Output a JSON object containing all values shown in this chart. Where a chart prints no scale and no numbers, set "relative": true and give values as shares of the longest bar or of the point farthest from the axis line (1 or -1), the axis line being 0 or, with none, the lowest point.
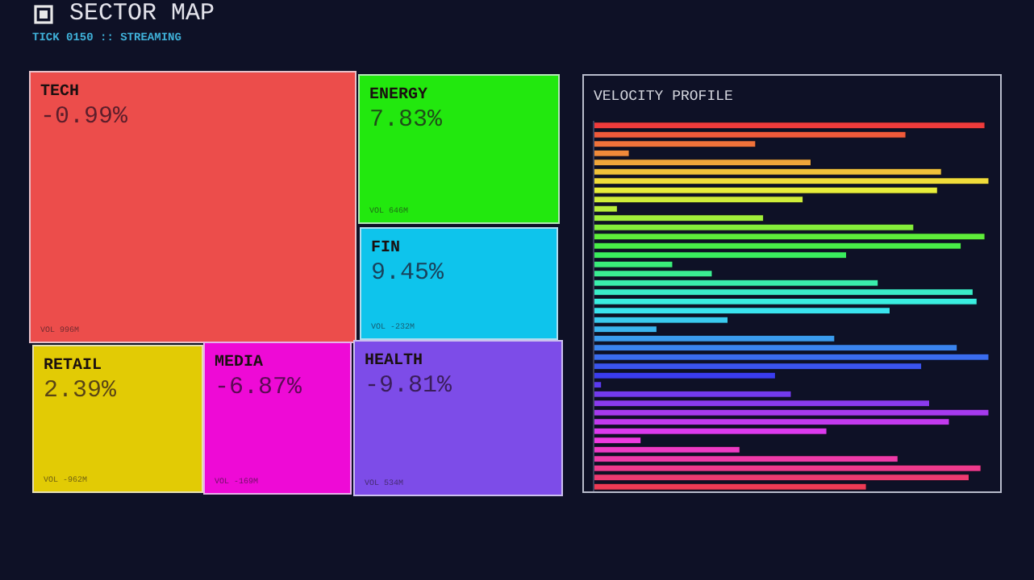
{
  "chart_data": [
    {
      "type": "other",
      "title": "SECTOR MAP",
      "subtitle": "TICK 0150 :: STREAMING",
      "categories": [
        "TECH",
        "ENERGY",
        "FIN",
        "RETAIL",
        "MEDIA",
        "HEALTH"
      ],
      "value_labels": [
        "-0.99%",
        "7.83%",
        "9.45%",
        "2.39%",
        "-6.87%",
        "-9.81%"
      ],
      "colors": [
        "#ec4d4b",
        "#22e80e",
        "#0ec4ec",
        "#e2cb05",
        "#ee0ad6",
        "#7d4ce8"
      ],
      "annotations": [
        {
          "text": "VOL 996M",
          "x": "TECH"
        },
        {
          "text": "VOL 646M",
          "x": "ENERGY"
        },
        {
          "text": "VOL -232M",
          "x": "FIN"
        },
        {
          "text": "VOL -962M",
          "x": "RETAIL"
        },
        {
          "text": "VOL -169M",
          "x": "MEDIA"
        },
        {
          "text": "VOL 534M",
          "x": "HEALTH"
        }
      ]
    },
    {
      "type": "bar",
      "title": "VELOCITY PROFILE",
      "orientation": "horizontal",
      "relative": true,
      "categories": [
        null,
        null,
        null,
        null,
        null,
        null,
        null,
        null,
        null,
        null,
        null,
        null,
        null,
        null,
        null,
        null,
        null,
        null,
        null,
        null,
        null,
        null,
        null,
        null,
        null,
        null,
        null,
        null,
        null,
        null,
        null,
        null,
        null,
        null,
        null,
        null,
        null,
        null,
        null,
        null
      ],
      "values": [
        0.99,
        0.79,
        0.41,
        0.09,
        0.55,
        0.88,
        1.0,
        0.87,
        0.53,
        0.06,
        0.43,
        0.81,
        0.99,
        0.93,
        0.64,
        0.2,
        0.3,
        0.72,
        0.96,
        0.97,
        0.75,
        0.34,
        0.16,
        0.61,
        0.92,
        1.0,
        0.83,
        0.46,
        0.02,
        0.5,
        0.85,
        1.0,
        0.9,
        0.59,
        0.12,
        0.37,
        0.77,
        0.98,
        0.95,
        0.69
      ],
      "colors": [
        "#ef3b3b",
        "#f05a3a",
        "#f0723a",
        "#f08a3a",
        "#f0a63a",
        "#f0c23a",
        "#f0dc3a",
        "#e8ee3a",
        "#d0ee3a",
        "#b8ee3a",
        "#a0ee3a",
        "#84ee3a",
        "#5eee3a",
        "#48ee48",
        "#3aee5e",
        "#3aee7a",
        "#3aee92",
        "#3aeeac",
        "#3aeec8",
        "#3aeee0",
        "#3ae4ee",
        "#3acaee",
        "#3ab4ee",
        "#3a9cee",
        "#3a84ee",
        "#3a6cee",
        "#3a54ee",
        "#3a3cee",
        "#5a3aee",
        "#723aee",
        "#8a3aee",
        "#a63aee",
        "#c23aee",
        "#dc3aee",
        "#ee3ae0",
        "#ee3ac4",
        "#ee3aa8",
        "#ee3a8c",
        "#ee3a70",
        "#ee3a54"
      ]
    }
  ]
}
